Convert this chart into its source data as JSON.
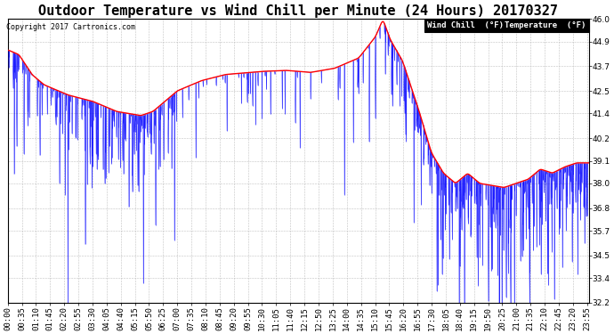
{
  "title": "Outdoor Temperature vs Wind Chill per Minute (24 Hours) 20170327",
  "copyright": "Copyright 2017 Cartronics.com",
  "ylim": [
    32.2,
    46.0
  ],
  "yticks": [
    32.2,
    33.4,
    34.5,
    35.7,
    36.8,
    38.0,
    39.1,
    40.2,
    41.4,
    42.5,
    43.7,
    44.9,
    46.0
  ],
  "legend_labels": [
    "Wind Chill  (°F)",
    "Temperature  (°F)"
  ],
  "wind_chill_color": "#0000ff",
  "temp_color": "#ff0000",
  "bg_color": "#ffffff",
  "grid_color": "#bbbbbb",
  "title_fontsize": 11,
  "tick_fontsize": 6.5,
  "num_minutes": 1440,
  "xtick_interval_min": 35,
  "xtick_labels": [
    "00:00",
    "00:35",
    "01:10",
    "01:45",
    "02:20",
    "02:55",
    "03:30",
    "04:05",
    "04:40",
    "05:15",
    "05:50",
    "06:25",
    "07:00",
    "07:35",
    "08:10",
    "08:45",
    "09:20",
    "09:55",
    "10:30",
    "11:05",
    "11:40",
    "12:15",
    "12:50",
    "13:25",
    "14:00",
    "14:35",
    "15:10",
    "15:45",
    "16:20",
    "16:55",
    "17:30",
    "18:05",
    "18:40",
    "19:15",
    "19:50",
    "20:25",
    "21:00",
    "21:35",
    "22:10",
    "22:45",
    "23:20",
    "23:55"
  ]
}
